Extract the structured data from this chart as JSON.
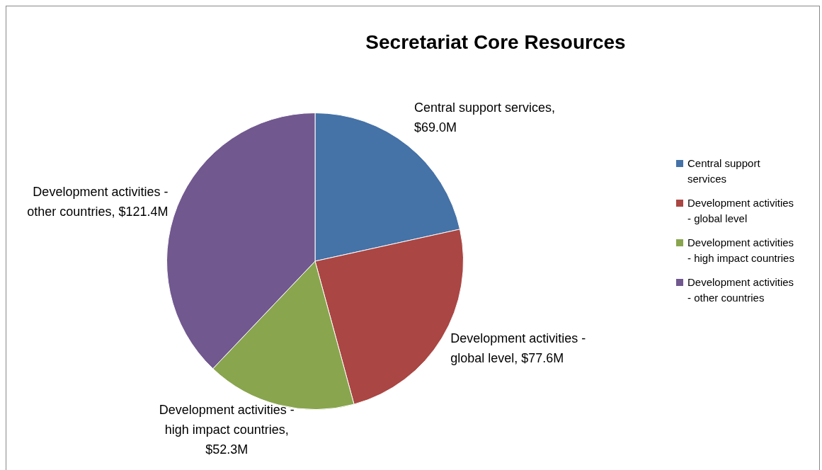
{
  "chart_data": {
    "type": "pie",
    "title": "Secretariat Core Resources",
    "categories": [
      "Central support services",
      "Development activities - global level",
      "Development activities - high impact countries",
      "Development activities - other countries"
    ],
    "values": [
      69.0,
      77.6,
      52.3,
      121.4
    ],
    "value_labels": [
      "Central support services, $69.0M",
      "Development activities - global level, $77.6M",
      "Development activities - high impact countries, $52.3M",
      "Development activities - other countries, $121.4M"
    ],
    "colors": [
      "#4572a7",
      "#aa4643",
      "#89a54e",
      "#71588f"
    ],
    "legend": "right"
  }
}
